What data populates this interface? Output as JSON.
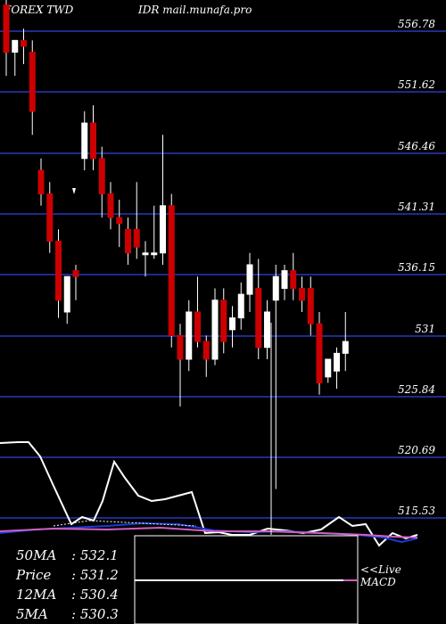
{
  "header": {
    "symbol": "FOREX  TWD",
    "pair": "IDR",
    "site": "mail.munafa.pro"
  },
  "colors": {
    "background": "#000000",
    "grid": "#1e2a8f",
    "up": "#ffffff",
    "down": "#cc0000",
    "wick": "#ffffff",
    "price_line": "#ffffff",
    "ma_line": "#1a3adb",
    "ma_line2": "#d060c0"
  },
  "indicators": {
    "ma50": {
      "label": "50MA",
      "value": "532.1"
    },
    "price": {
      "label": "Price",
      "value": "531.2"
    },
    "ma12": {
      "label": "12MA",
      "value": "530.4"
    },
    "ma5": {
      "label": "5MA",
      "value": "530.3"
    }
  },
  "live_label": "<<Live",
  "macd_label": "MACD",
  "chart_data": {
    "type": "candlestick",
    "y_ticks": [
      "556.78",
      "551.62",
      "546.46",
      "541.31",
      "536.15",
      "531",
      "525.84",
      "520.69",
      "515.53"
    ],
    "ylim": [
      513.0,
      560.0
    ],
    "candles": [
      {
        "o": 559.0,
        "h": 560.0,
        "l": 553.0,
        "c": 555.0
      },
      {
        "o": 555.0,
        "h": 556.0,
        "l": 553.0,
        "c": 556.0
      },
      {
        "o": 556.0,
        "h": 557.0,
        "l": 554.0,
        "c": 555.5
      },
      {
        "o": 555.0,
        "h": 556.0,
        "l": 548.0,
        "c": 550.0
      },
      {
        "o": 545.0,
        "h": 546.0,
        "l": 542.0,
        "c": 543.0
      },
      {
        "o": 543.0,
        "h": 544.0,
        "l": 538.0,
        "c": 539.0
      },
      {
        "o": 539.0,
        "h": 540.0,
        "l": 532.5,
        "c": 534.0
      },
      {
        "o": 533.0,
        "h": 536.0,
        "l": 532.0,
        "c": 536.0
      },
      {
        "o": 536.5,
        "h": 537.0,
        "l": 534.0,
        "c": 536.0
      },
      {
        "o": 546.0,
        "h": 550.0,
        "l": 545.0,
        "c": 549.0
      },
      {
        "o": 549.0,
        "h": 550.5,
        "l": 545.0,
        "c": 546.0
      },
      {
        "o": 546.0,
        "h": 547.0,
        "l": 541.0,
        "c": 543.0
      },
      {
        "o": 543.0,
        "h": 544.0,
        "l": 540.0,
        "c": 541.0
      },
      {
        "o": 541.0,
        "h": 542.5,
        "l": 538.5,
        "c": 540.5
      },
      {
        "o": 540.0,
        "h": 541.0,
        "l": 537.0,
        "c": 538.0
      },
      {
        "o": 540.0,
        "h": 544.0,
        "l": 537.5,
        "c": 538.5
      },
      {
        "o": 538.0,
        "h": 539.0,
        "l": 536.0,
        "c": 538.0
      },
      {
        "o": 538.0,
        "h": 542.0,
        "l": 537.5,
        "c": 538.0
      },
      {
        "o": 538.0,
        "h": 548.0,
        "l": 537.0,
        "c": 542.0
      },
      {
        "o": 542.0,
        "h": 543.0,
        "l": 530.0,
        "c": 531.0
      },
      {
        "o": 531.0,
        "h": 532.0,
        "l": 525.0,
        "c": 529.0
      },
      {
        "o": 529.0,
        "h": 534.0,
        "l": 528.0,
        "c": 533.0
      },
      {
        "o": 533.0,
        "h": 536.0,
        "l": 530.0,
        "c": 530.5
      },
      {
        "o": 530.5,
        "h": 531.0,
        "l": 527.5,
        "c": 529.0
      },
      {
        "o": 529.0,
        "h": 535.0,
        "l": 528.5,
        "c": 534.0
      },
      {
        "o": 534.0,
        "h": 535.0,
        "l": 529.5,
        "c": 530.5
      },
      {
        "o": 531.5,
        "h": 533.5,
        "l": 530.0,
        "c": 532.5
      },
      {
        "o": 532.5,
        "h": 535.5,
        "l": 531.5,
        "c": 534.5
      },
      {
        "o": 534.5,
        "h": 538.0,
        "l": 533.0,
        "c": 537.0
      },
      {
        "o": 535.0,
        "h": 537.5,
        "l": 529.0,
        "c": 530.0
      },
      {
        "o": 530.0,
        "h": 534.0,
        "l": 529.0,
        "c": 533.0
      },
      {
        "o": 534.0,
        "h": 537.0,
        "l": 518.0,
        "c": 536.0
      },
      {
        "o": 535.0,
        "h": 537.0,
        "l": 534.0,
        "c": 536.5
      },
      {
        "o": 536.5,
        "h": 538.0,
        "l": 534.0,
        "c": 535.0
      },
      {
        "o": 535.0,
        "h": 536.0,
        "l": 533.0,
        "c": 534.0
      },
      {
        "o": 535.0,
        "h": 536.0,
        "l": 531.0,
        "c": 532.0
      },
      {
        "o": 532.0,
        "h": 533.0,
        "l": 526.0,
        "c": 527.0
      },
      {
        "o": 527.5,
        "h": 529.0,
        "l": 527.0,
        "c": 529.0
      },
      {
        "o": 528.0,
        "h": 530.0,
        "l": 526.5,
        "c": 529.5
      },
      {
        "o": 529.5,
        "h": 533.0,
        "l": 528.0,
        "c": 530.5
      }
    ]
  }
}
